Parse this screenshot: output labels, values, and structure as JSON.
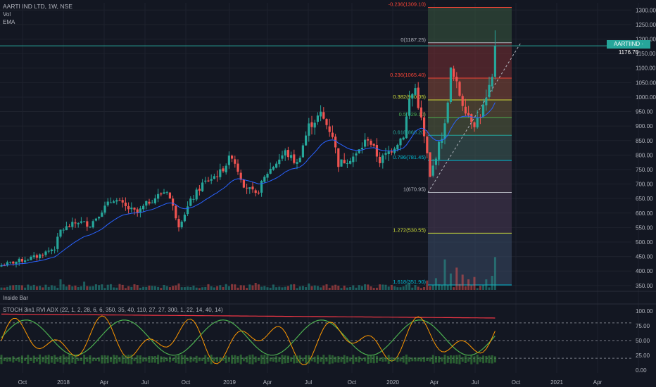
{
  "header": {
    "title": "AARTI IND LTD, 1W, NSE",
    "indicator_vol": "Vol",
    "indicator_ema": "EMA"
  },
  "panes": {
    "inside_bar_label": "Inside Bar",
    "stoch_label": "STOCH 3in1 RVI ADX (22, 1, 2, 28, 6, 6, 350, 35, 40, 110, 27, 27, 300, 1, 22, 14, 40, 14)"
  },
  "price_badge": "AARTIIND · 1176.70",
  "colors": {
    "background": "#131722",
    "up": "#26a69a",
    "down": "#ef5350",
    "ema": "#2962ff",
    "grid": "#1e222d",
    "stoch_k": "#ff9800",
    "stoch_d": "#4caf50",
    "rvi": "#f23645"
  },
  "chart_data": {
    "type": "candlestick",
    "y_axis_ticks": [
      1300,
      1250,
      1200,
      1150,
      1100,
      1050,
      1000,
      950,
      900,
      850,
      800,
      750,
      700,
      650,
      600,
      550,
      500,
      450,
      400,
      350
    ],
    "y_axis_tick_labels": [
      "1300.00",
      "1250.00",
      "1200.00",
      "1150.00",
      "1100.00",
      "1050.00",
      "1000.00",
      "950.00",
      "900.00",
      "850.00",
      "800.00",
      "750.00",
      "700.00",
      "650.00",
      "600.00",
      "550.00",
      "500.00",
      "450.00",
      "400.00",
      "350.00"
    ],
    "ylim": [
      335,
      1325
    ],
    "x_axis_labels": [
      "Oct",
      "2018",
      "Apr",
      "Jul",
      "Oct",
      "2019",
      "Apr",
      "Jul",
      "Oct",
      "2020",
      "Apr",
      "Jul",
      "Oct",
      "2021",
      "Apr",
      "Jul"
    ],
    "last_price": 1176.7,
    "price_anchors": [
      [
        0,
        420
      ],
      [
        6,
        435
      ],
      [
        12,
        450
      ],
      [
        18,
        480
      ],
      [
        20,
        540
      ],
      [
        26,
        570
      ],
      [
        30,
        560
      ],
      [
        34,
        610
      ],
      [
        38,
        650
      ],
      [
        42,
        620
      ],
      [
        46,
        600
      ],
      [
        50,
        640
      ],
      [
        56,
        680
      ],
      [
        60,
        560
      ],
      [
        64,
        640
      ],
      [
        68,
        700
      ],
      [
        74,
        740
      ],
      [
        78,
        800
      ],
      [
        82,
        700
      ],
      [
        86,
        660
      ],
      [
        90,
        740
      ],
      [
        96,
        810
      ],
      [
        100,
        770
      ],
      [
        104,
        900
      ],
      [
        108,
        940
      ],
      [
        112,
        870
      ],
      [
        114,
        770
      ],
      [
        120,
        800
      ],
      [
        124,
        860
      ],
      [
        128,
        780
      ],
      [
        132,
        820
      ],
      [
        136,
        870
      ],
      [
        138,
        990
      ],
      [
        140,
        1030
      ],
      [
        142,
        920
      ],
      [
        144,
        800
      ],
      [
        145,
        720
      ],
      [
        147,
        800
      ],
      [
        150,
        900
      ],
      [
        152,
        1090
      ],
      [
        154,
        1040
      ],
      [
        156,
        980
      ],
      [
        158,
        940
      ],
      [
        160,
        910
      ],
      [
        162,
        940
      ],
      [
        164,
        990
      ],
      [
        166,
        1060
      ],
      [
        167,
        1177
      ]
    ],
    "volume_ylim": [
      0,
      600
    ],
    "volume_spikes": [
      [
        20,
        90
      ],
      [
        28,
        70
      ],
      [
        40,
        50
      ],
      [
        60,
        55
      ],
      [
        86,
        60
      ],
      [
        104,
        55
      ],
      [
        138,
        60
      ],
      [
        144,
        80
      ],
      [
        147,
        100
      ],
      [
        150,
        260
      ],
      [
        152,
        140
      ],
      [
        154,
        190
      ],
      [
        156,
        130
      ],
      [
        158,
        90
      ],
      [
        160,
        110
      ],
      [
        164,
        90
      ],
      [
        166,
        120
      ],
      [
        167,
        280
      ]
    ],
    "fibonacci": {
      "levels": [
        {
          "label": "-0.236(1309.10)",
          "value": 1309.1
        },
        {
          "label": "0(1187.25)",
          "value": 1187.25
        },
        {
          "label": "0.236(1065.40)",
          "value": 1065.4
        },
        {
          "label": "0.382(990.05)",
          "value": 990.05
        },
        {
          "label": "0.5(929.10)",
          "value": 929.1
        },
        {
          "label": "0.618(868.20)",
          "value": 868.2
        },
        {
          "label": "0.786(781.45)",
          "value": 781.45
        },
        {
          "label": "1(670.95)",
          "value": 670.95
        },
        {
          "label": "1.272(530.55)",
          "value": 530.55
        },
        {
          "label": "1.618(351.90)",
          "value": 351.9
        }
      ],
      "band_colors": [
        "#3a5a40",
        "#7a2f33",
        "#8a4a3a",
        "#6f5b3a",
        "#5a6140",
        "#3f5f5a",
        "#4a3a4f",
        "#4a3a55",
        "#3b4a66",
        "#2f6e6e"
      ],
      "line_colors": [
        "#f44336",
        "#b2b5be",
        "#f44336",
        "#cddc39",
        "#4caf50",
        "#26a69a",
        "#00bcd4",
        "#b2b5be",
        "#cddc39",
        "#00bcd4"
      ]
    },
    "oscillator_ticks": [
      100,
      75,
      50,
      25,
      0
    ],
    "oscillator_tick_labels": [
      "100.00",
      "75.00",
      "50.00",
      "25.00",
      "0.00"
    ],
    "oscillator_ylim": [
      -5,
      105
    ],
    "oscillator_dashed_levels": [
      80,
      50,
      20
    ]
  }
}
